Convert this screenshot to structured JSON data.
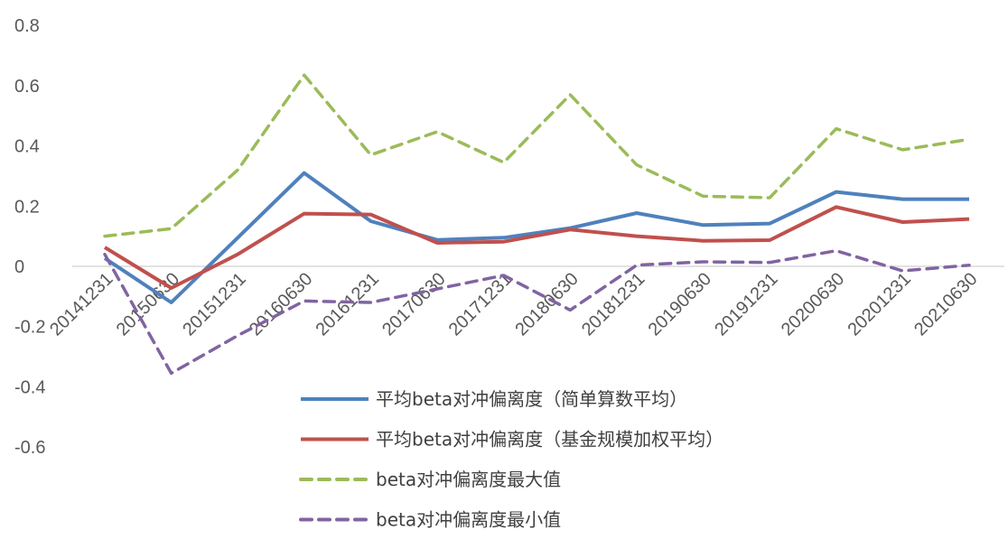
{
  "chart_data": {
    "type": "line",
    "title": "",
    "xlabel": "",
    "ylabel": "",
    "ylim": [
      -0.6,
      0.8
    ],
    "yticks": [
      0.8,
      0.6,
      0.4,
      0.2,
      0,
      -0.2,
      -0.4,
      -0.6
    ],
    "ytick_labels": [
      "0.8",
      "0.6",
      "0.4",
      "0.2",
      "0",
      "-0.2",
      "-0.4",
      "-0.6"
    ],
    "grid": false,
    "legend_position": "bottom-center",
    "categories": [
      "20141231",
      "20150630",
      "20151231",
      "20160630",
      "20161231",
      "20170630",
      "20171231",
      "20180630",
      "20181231",
      "20190630",
      "20191231",
      "20200630",
      "20201231",
      "20210630"
    ],
    "series": [
      {
        "name": "平均beta对冲偏离度（简单算数平均）",
        "color": "#4f81bd",
        "dash": "solid",
        "values": [
          0.027,
          -0.12,
          0.095,
          0.31,
          0.15,
          0.088,
          0.095,
          0.127,
          0.177,
          0.137,
          0.142,
          0.247,
          0.223,
          0.223
        ]
      },
      {
        "name": "平均beta对冲偏离度（基金规模加权平均）",
        "color": "#c0504d",
        "dash": "solid",
        "values": [
          0.063,
          -0.072,
          0.04,
          0.175,
          0.172,
          0.078,
          0.082,
          0.122,
          0.1,
          0.085,
          0.087,
          0.197,
          0.147,
          0.157
        ]
      },
      {
        "name": "beta对冲偏离度最大值",
        "color": "#9bbb59",
        "dash": "dashed",
        "values": [
          0.1,
          0.125,
          0.32,
          0.635,
          0.37,
          0.447,
          0.345,
          0.57,
          0.337,
          0.233,
          0.228,
          0.457,
          0.387,
          0.422
        ]
      },
      {
        "name": "beta对冲偏离度最小值",
        "color": "#8064a2",
        "dash": "dashed",
        "values": [
          0.04,
          -0.355,
          -0.23,
          -0.115,
          -0.12,
          -0.075,
          -0.03,
          -0.145,
          0.004,
          0.015,
          0.013,
          0.052,
          -0.015,
          0.004
        ]
      }
    ]
  }
}
